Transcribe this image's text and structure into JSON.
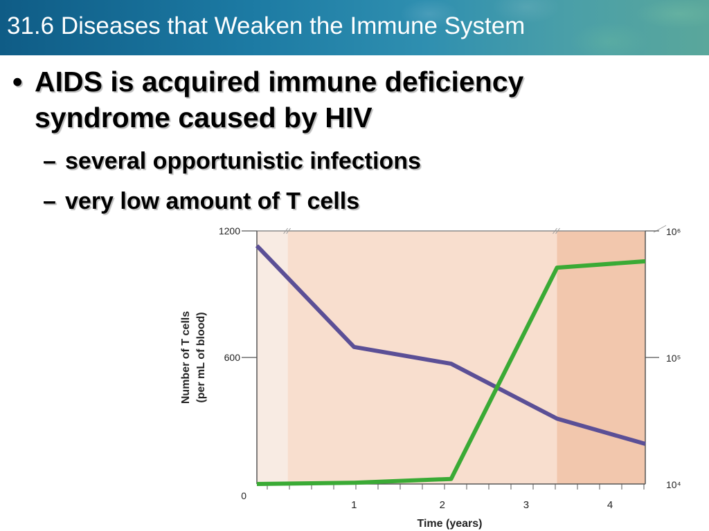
{
  "slide": {
    "title": "31.6 Diseases that Weaken the Immune System",
    "bullet_marker": "•",
    "bullet_main": "AIDS is acquired immune deficiency syndrome caused by HIV",
    "sub_marker": "–",
    "sub_bullets": [
      "several opportunistic infections",
      "very low amount of T cells"
    ]
  },
  "chart_data": {
    "type": "line",
    "xlabel": "Time (years)",
    "ylabel_left": [
      "Number of T cells",
      "(per mL of blood)"
    ],
    "left_ticks": [
      "1200",
      "600",
      "0"
    ],
    "right_ticks": [
      "10⁶",
      "10⁵",
      "10⁴"
    ],
    "x_ticks": [
      "1",
      "2",
      "3",
      "4"
    ],
    "xlim": [
      0,
      4.4
    ],
    "ylim_left": [
      0,
      1200
    ],
    "ylim_right_log10": [
      4,
      6
    ],
    "y_scale_right": "log",
    "series": [
      {
        "axis": "left",
        "color": "#5b4f96",
        "x": [
          0,
          1.1,
          2.2,
          3.4,
          4.4
        ],
        "y": [
          1130,
          650,
          570,
          310,
          190
        ]
      },
      {
        "axis": "right",
        "color": "#3aaa35",
        "x": [
          0,
          1.1,
          2.2,
          3.4,
          4.4
        ],
        "y_log10": [
          4.0,
          4.01,
          4.04,
          5.71,
          5.76
        ]
      }
    ],
    "shaded_regions": [
      {
        "x": [
          0,
          0.35
        ],
        "color": "#f8ebe3"
      },
      {
        "x": [
          0.35,
          3.4
        ],
        "color": "#f8dece"
      },
      {
        "x": [
          3.4,
          4.4
        ],
        "color": "#f2c7ad"
      }
    ]
  }
}
